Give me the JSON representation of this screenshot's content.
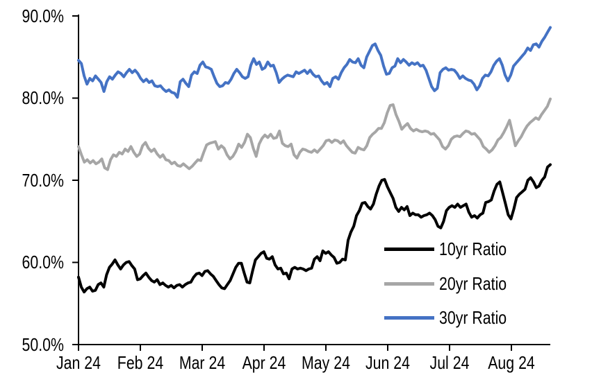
{
  "chart_data": {
    "type": "line",
    "title": "",
    "grid": false,
    "legend_position": "inside-lower-right",
    "x_axis": {
      "tick_labels": [
        "Jan 24",
        "Feb 24",
        "Mar 24",
        "Apr 24",
        "May 24",
        "Jun 24",
        "Jul 24",
        "Aug 24"
      ],
      "unit": "month"
    },
    "y_axis": {
      "tick_labels": [
        "90.0%",
        "80.0%",
        "70.0%",
        "60.0%",
        "50.0%"
      ],
      "min": 50,
      "max": 90,
      "format": "percent"
    },
    "axis_color": "#000000",
    "series": [
      {
        "name": "10yr Ratio",
        "color": "#000000",
        "values": [
          58.2,
          57.0,
          56.4,
          56.8,
          57.0,
          56.5,
          56.6,
          57.3,
          57.5,
          57.0,
          58.5,
          59.4,
          59.8,
          60.3,
          59.7,
          59.2,
          59.7,
          60.0,
          60.1,
          59.6,
          59.2,
          57.9,
          58.0,
          58.4,
          58.7,
          58.2,
          57.8,
          57.6,
          57.9,
          57.3,
          57.5,
          57.2,
          57.0,
          57.2,
          56.9,
          57.2,
          57.3,
          57.0,
          57.3,
          57.5,
          57.6,
          58.2,
          58.6,
          58.7,
          58.4,
          58.9,
          59.0,
          58.6,
          58.3,
          57.8,
          57.3,
          56.9,
          56.8,
          57.3,
          57.8,
          58.6,
          59.4,
          59.9,
          59.9,
          58.7,
          57.6,
          57.5,
          59.0,
          60.3,
          60.7,
          61.1,
          61.3,
          60.5,
          60.4,
          60.7,
          59.7,
          59.2,
          59.3,
          58.6,
          58.7,
          58.0,
          59.2,
          59.4,
          59.2,
          59.3,
          59.2,
          59.0,
          59.2,
          59.3,
          60.4,
          60.7,
          60.2,
          61.4,
          61.1,
          61.3,
          60.9,
          60.6,
          59.9,
          60.0,
          60.4,
          60.3,
          62.7,
          63.7,
          64.4,
          65.7,
          66.3,
          67.2,
          67.3,
          66.8,
          66.5,
          67.1,
          68.3,
          69.3,
          70.0,
          70.1,
          69.2,
          68.5,
          67.8,
          66.7,
          66.2,
          66.7,
          66.4,
          66.8,
          65.7,
          66.0,
          65.8,
          65.8,
          65.5,
          65.7,
          65.8,
          66.0,
          65.7,
          65.2,
          64.4,
          64.2,
          65.0,
          66.3,
          66.7,
          66.9,
          66.7,
          67.1,
          66.7,
          66.9,
          67.1,
          66.1,
          65.5,
          65.7,
          65.4,
          65.8,
          66.0,
          67.3,
          67.4,
          67.6,
          68.7,
          69.5,
          69.8,
          68.5,
          67.2,
          65.8,
          65.3,
          66.5,
          67.9,
          68.3,
          68.6,
          68.9,
          70.0,
          70.3,
          69.8,
          69.1,
          69.3,
          70.0,
          70.4,
          71.6,
          71.9
        ]
      },
      {
        "name": "20yr Ratio",
        "color": "#A6A6A6",
        "values": [
          74.1,
          73.1,
          72.2,
          72.5,
          72.1,
          72.4,
          72.0,
          72.2,
          72.6,
          71.5,
          71.3,
          72.5,
          73.1,
          72.9,
          73.4,
          73.2,
          73.8,
          73.5,
          74.1,
          73.4,
          72.9,
          73.2,
          74.2,
          74.6,
          73.9,
          73.5,
          73.8,
          73.2,
          72.8,
          73.1,
          72.5,
          72.4,
          72.0,
          72.2,
          71.8,
          71.7,
          72.0,
          71.7,
          71.4,
          71.7,
          72.1,
          72.5,
          72.4,
          73.4,
          74.3,
          74.5,
          74.6,
          74.7,
          73.8,
          74.2,
          73.9,
          73.1,
          72.6,
          72.9,
          73.5,
          74.4,
          74.0,
          74.6,
          75.6,
          75.2,
          73.9,
          72.9,
          74.4,
          75.1,
          75.5,
          75.2,
          75.6,
          75.1,
          75.2,
          76.0,
          74.5,
          74.2,
          74.1,
          74.4,
          73.1,
          72.7,
          73.4,
          73.8,
          73.7,
          73.5,
          73.4,
          73.7,
          73.4,
          73.8,
          74.2,
          74.8,
          74.9,
          74.6,
          74.9,
          74.8,
          74.5,
          74.8,
          74.2,
          73.8,
          73.4,
          73.3,
          74.0,
          73.8,
          73.7,
          74.2,
          75.2,
          75.6,
          75.9,
          76.3,
          76.3,
          77.0,
          78.2,
          79.1,
          79.2,
          78.0,
          77.2,
          76.2,
          76.6,
          76.9,
          76.3,
          76.0,
          76.2,
          76.0,
          75.9,
          76.0,
          75.9,
          75.6,
          75.7,
          75.3,
          74.9,
          74.1,
          73.8,
          74.2,
          75.0,
          75.3,
          75.4,
          75.3,
          75.7,
          76.0,
          75.9,
          75.6,
          75.7,
          75.3,
          74.9,
          74.1,
          73.8,
          73.4,
          73.7,
          74.2,
          74.9,
          75.2,
          75.8,
          76.5,
          77.3,
          75.8,
          74.2,
          74.8,
          75.3,
          76.0,
          76.6,
          77.0,
          77.3,
          77.6,
          77.4,
          78.0,
          78.5,
          79.0,
          79.9
        ]
      },
      {
        "name": "30yr Ratio",
        "color": "#4472C4",
        "values": [
          84.6,
          84.2,
          82.7,
          81.7,
          82.4,
          82.1,
          82.7,
          82.3,
          81.9,
          80.8,
          82.0,
          82.6,
          82.3,
          82.8,
          83.2,
          83.0,
          82.6,
          83.1,
          83.5,
          83.1,
          83.4,
          83.0,
          82.4,
          82.0,
          82.3,
          81.9,
          82.1,
          81.5,
          81.4,
          81.5,
          81.1,
          80.8,
          81.0,
          80.7,
          80.6,
          80.1,
          82.0,
          82.3,
          81.8,
          81.4,
          82.8,
          83.2,
          83.0,
          84.0,
          84.4,
          83.8,
          83.7,
          83.5,
          82.6,
          81.8,
          81.4,
          81.5,
          81.9,
          81.8,
          82.3,
          83.0,
          83.5,
          83.1,
          82.6,
          82.4,
          82.6,
          84.0,
          84.8,
          84.1,
          84.4,
          83.5,
          83.7,
          84.4,
          83.9,
          84.0,
          83.1,
          81.9,
          82.3,
          82.6,
          82.8,
          82.7,
          82.6,
          83.2,
          83.0,
          83.2,
          83.4,
          83.0,
          83.4,
          82.9,
          82.6,
          82.7,
          82.1,
          81.7,
          81.9,
          81.4,
          82.4,
          82.6,
          82.3,
          83.1,
          83.7,
          84.1,
          84.7,
          84.4,
          84.3,
          84.8,
          84.0,
          83.7,
          85.0,
          85.7,
          86.4,
          86.6,
          85.8,
          85.2,
          83.9,
          82.9,
          83.0,
          83.7,
          83.9,
          84.8,
          84.3,
          84.7,
          84.4,
          84.0,
          84.3,
          84.1,
          84.3,
          83.9,
          84.0,
          83.4,
          82.4,
          81.4,
          80.9,
          81.2,
          83.1,
          83.5,
          83.7,
          83.4,
          83.5,
          83.4,
          83.0,
          82.4,
          82.7,
          82.4,
          82.2,
          82.1,
          81.7,
          81.0,
          81.5,
          82.4,
          82.8,
          82.7,
          83.2,
          84.0,
          84.5,
          84.8,
          84.0,
          82.8,
          82.1,
          82.8,
          83.9,
          84.3,
          84.7,
          85.1,
          85.5,
          86.1,
          85.8,
          86.5,
          86.6,
          86.2,
          86.9,
          87.4,
          88.0,
          88.6
        ]
      }
    ]
  }
}
